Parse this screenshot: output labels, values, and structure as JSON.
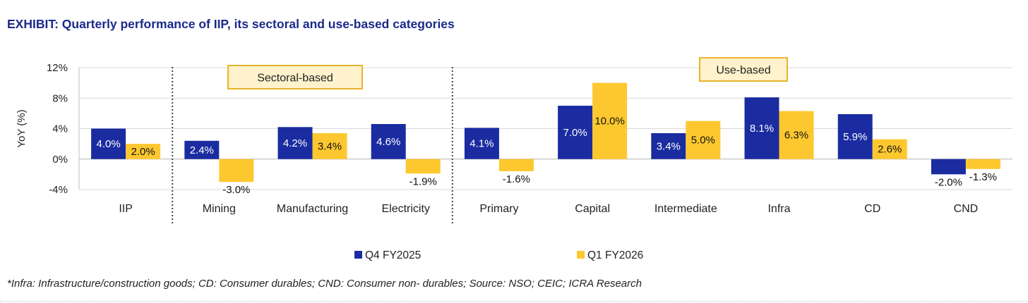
{
  "title": "EXHIBIT: Quarterly performance of IIP, its sectoral and use-based categories",
  "footnote": "*Infra: Infrastructure/construction goods; CD: Consumer durables; CND: Consumer non- durables; Source: NSO; CEIC; ICRA Research",
  "colors": {
    "q4": "#1a2ca0",
    "q1": "#fdc82f",
    "title": "#1b2a8a",
    "groupBoxBorder": "#e8b42a",
    "groupBoxFill": "#fff2cc"
  },
  "chart_data": {
    "type": "bar",
    "categories": [
      "IIP",
      "Mining",
      "Manufacturing",
      "Electricity",
      "Primary",
      "Capital",
      "Intermediate",
      "Infra",
      "CD",
      "CND"
    ],
    "series": [
      {
        "name": "Q4 FY2025",
        "values": [
          4.0,
          2.4,
          4.2,
          4.6,
          4.1,
          7.0,
          3.4,
          8.1,
          5.9,
          -2.0
        ],
        "labels": [
          "4.0%",
          "2.4%",
          "4.2%",
          "4.6%",
          "4.1%",
          "7.0%",
          "3.4%",
          "8.1%",
          "5.9%",
          "-2.0%"
        ]
      },
      {
        "name": "Q1 FY2026",
        "values": [
          2.0,
          -3.0,
          3.4,
          -1.9,
          -1.6,
          10.0,
          5.0,
          6.3,
          2.6,
          -1.3
        ],
        "labels": [
          "2.0%",
          "-3.0%",
          "3.4%",
          "-1.9%",
          "-1.6%",
          "10.0%",
          "5.0%",
          "6.3%",
          "2.6%",
          "-1.3%"
        ]
      }
    ],
    "ylabel": "YoY (%)",
    "ylim": [
      -4,
      12
    ],
    "yticks": [
      -4,
      0,
      4,
      8,
      12
    ],
    "ytick_labels": [
      "-4%",
      "0%",
      "4%",
      "8%",
      "12%"
    ],
    "grid": true,
    "legend": "bottom-center",
    "group_labels": [
      "Sectoral-based",
      "Use-based"
    ]
  }
}
